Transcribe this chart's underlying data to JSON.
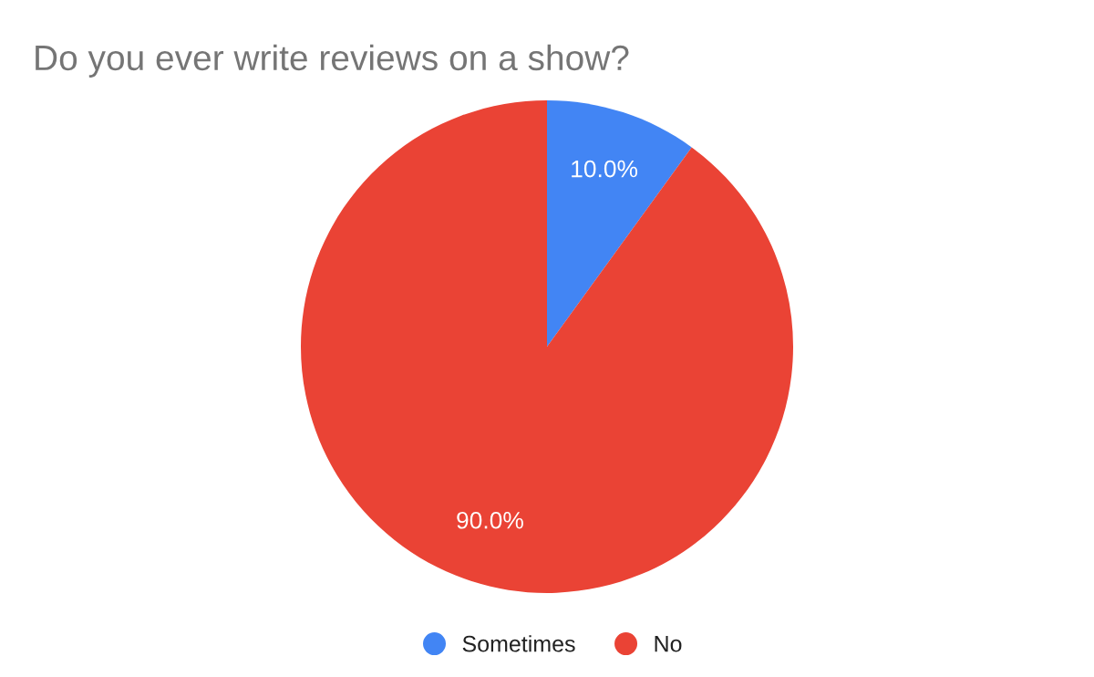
{
  "chart_data": {
    "type": "pie",
    "title": "Do you ever write reviews on a show?",
    "categories": [
      "Sometimes",
      "No"
    ],
    "values": [
      10,
      90
    ],
    "colors": [
      "#4285f4",
      "#ea4335"
    ],
    "value_labels": [
      "10.0%",
      "90.0%"
    ],
    "legend": "bottom"
  }
}
